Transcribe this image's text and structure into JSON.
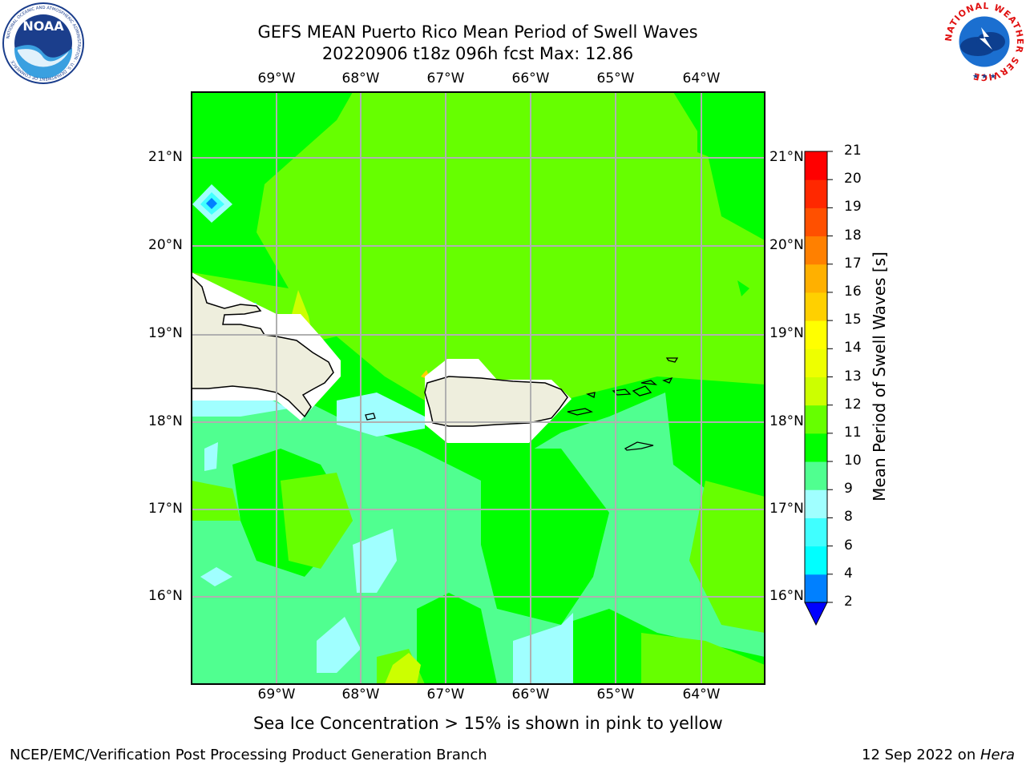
{
  "header": {
    "title_line1": "GEFS MEAN Puerto Rico Mean Period of Swell Waves",
    "title_line2": "20220906 t18z 096h fcst   Max: 12.86"
  },
  "map": {
    "lon_labels": [
      "69°W",
      "68°W",
      "67°W",
      "66°W",
      "65°W",
      "64°W"
    ],
    "lat_labels": [
      "21°N",
      "20°N",
      "19°N",
      "18°N",
      "17°N",
      "16°N"
    ],
    "subtitle": "Sea Ice Concentration > 15% is shown in pink to yellow"
  },
  "colorbar": {
    "label": "Mean Period of Swell Waves [s]",
    "ticks": [
      "21",
      "20",
      "19",
      "18",
      "17",
      "16",
      "15",
      "14",
      "13",
      "12",
      "11",
      "10",
      "9",
      "8",
      "6",
      "4",
      "2"
    ],
    "colors": [
      "#0000ff",
      "#0080ff",
      "#00ffff",
      "#40ffff",
      "#a0ffff",
      "#50ff90",
      "#00ff00",
      "#66ff00",
      "#ccff00",
      "#eeff00",
      "#ffff00",
      "#ffd000",
      "#ffb000",
      "#ff8000",
      "#ff5000",
      "#ff2800",
      "#ff0000"
    ]
  },
  "legend_colors": {
    "land": "#eeeedd",
    "coast": "#000000",
    "grid": "#b0b0b0"
  },
  "logos": {
    "noaa_text": "NOAA",
    "noaa_ring": "NATIONAL OCEANIC AND ATMOSPHERIC ADMINISTRATION · U.S. DEPARTMENT OF COMMERCE",
    "nws_ring": "NATIONAL WEATHER SERVICE"
  },
  "footer": {
    "left": "NCEP/EMC/Verification Post Processing Product Generation Branch",
    "right_date": "12 Sep 2022 on ",
    "right_host": "Hera"
  }
}
